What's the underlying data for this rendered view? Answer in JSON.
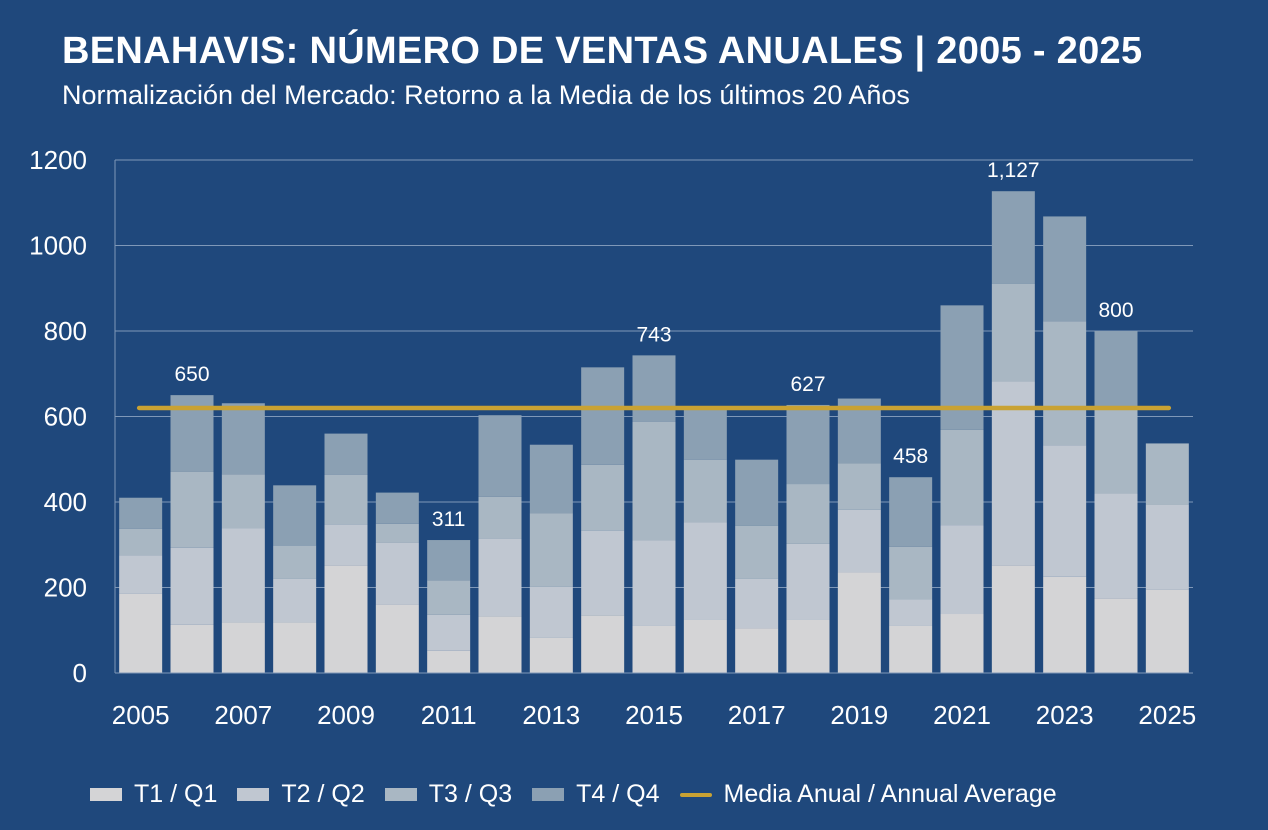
{
  "chart_data": {
    "type": "bar",
    "stacked": true,
    "title": "BENAHAVIS: NÚMERO DE VENTAS ANUALES | 2005 - 2025",
    "subtitle": "Normalización del Mercado: Retorno a la Media de los últimos 20 Años",
    "categories": [
      "2005",
      "2006",
      "2007",
      "2008",
      "2009",
      "2010",
      "2011",
      "2012",
      "2013",
      "2014",
      "2015",
      "2016",
      "2017",
      "2018",
      "2019",
      "2020",
      "2021",
      "2022",
      "2023",
      "2024",
      "2025"
    ],
    "x_tick_labels": [
      "2005",
      "2007",
      "2009",
      "2011",
      "2013",
      "2015",
      "2017",
      "2019",
      "2021",
      "2023",
      "2025"
    ],
    "series": [
      {
        "name": "T1 / Q1",
        "color": "#d4d4d6",
        "values": [
          185,
          113,
          118,
          118,
          252,
          160,
          52,
          133,
          82,
          135,
          110,
          124,
          105,
          124,
          235,
          110,
          138,
          252,
          225,
          174,
          195
        ]
      },
      {
        "name": "T2 / Q2",
        "color": "#c0c7d1",
        "values": [
          90,
          180,
          220,
          102,
          96,
          145,
          84,
          182,
          120,
          198,
          200,
          228,
          115,
          178,
          147,
          62,
          208,
          430,
          308,
          246,
          198
        ]
      },
      {
        "name": "T3 / Q3",
        "color": "#a9b7c3",
        "values": [
          62,
          178,
          127,
          78,
          116,
          44,
          81,
          97,
          172,
          154,
          278,
          147,
          124,
          140,
          108,
          123,
          223,
          228,
          290,
          197,
          144
        ]
      },
      {
        "name": "T4 / Q4",
        "color": "#8ba0b3",
        "values": [
          73,
          179,
          166,
          141,
          96,
          73,
          94,
          191,
          160,
          228,
          155,
          124,
          155,
          185,
          152,
          163,
          291,
          217,
          245,
          183,
          0
        ]
      }
    ],
    "totals": [
      410,
      650,
      631,
      439,
      560,
      422,
      311,
      603,
      534,
      715,
      743,
      623,
      499,
      627,
      642,
      458,
      860,
      1127,
      1068,
      800,
      537
    ],
    "data_labels": [
      {
        "category": "2006",
        "text": "650"
      },
      {
        "category": "2011",
        "text": "311"
      },
      {
        "category": "2015",
        "text": "743"
      },
      {
        "category": "2018",
        "text": "627"
      },
      {
        "category": "2020",
        "text": "458"
      },
      {
        "category": "2022",
        "text": "1,127"
      },
      {
        "category": "2024",
        "text": "800"
      }
    ],
    "average": {
      "name": "Media Anual / Annual Average",
      "value": 620,
      "color": "#c9a233"
    },
    "ylim": [
      0,
      1200
    ],
    "yticks": [
      0,
      200,
      400,
      600,
      800,
      1000,
      1200
    ],
    "grid": true,
    "legend_position": "bottom",
    "xlabel": "",
    "ylabel": ""
  }
}
